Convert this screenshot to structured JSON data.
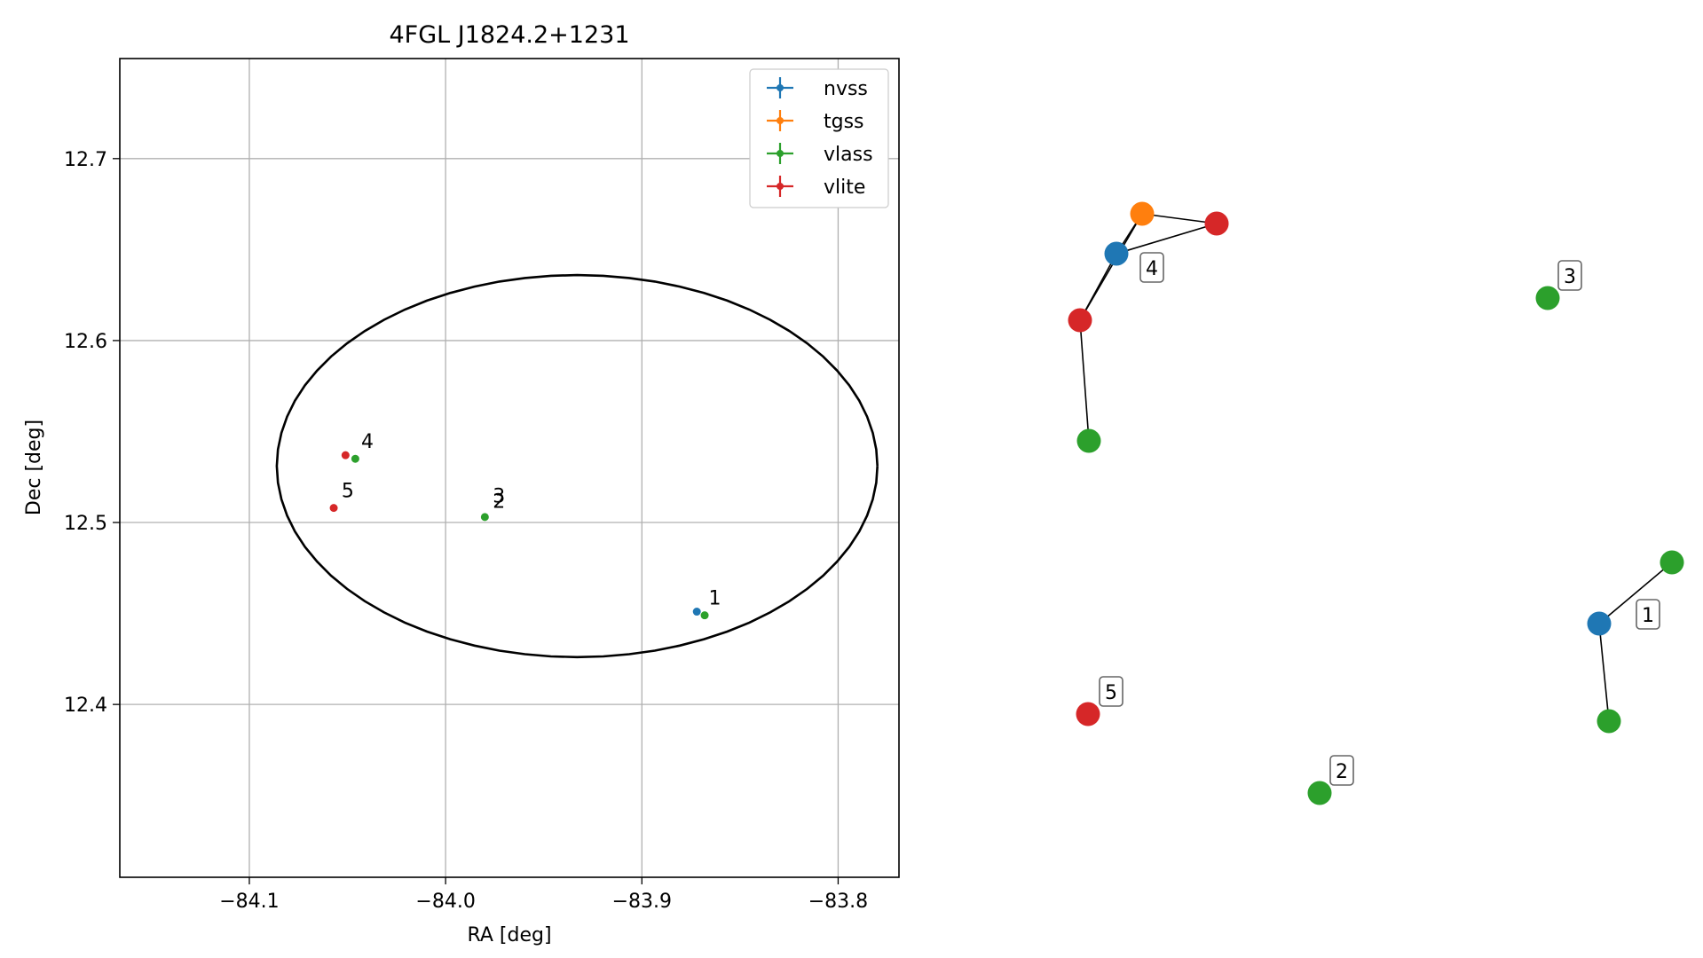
{
  "chart_data": [
    {
      "type": "scatter",
      "title": "4FGL J1824.2+1231",
      "xlabel": "RA [deg]",
      "ylabel": "Dec [deg]",
      "xlim": [
        -84.166,
        -83.769
      ],
      "ylim": [
        12.305,
        12.755
      ],
      "xticks": [
        -84.1,
        -84.0,
        -83.9,
        -83.8
      ],
      "xtick_labels": [
        "−84.1",
        "−84.0",
        "−83.9",
        "−83.8"
      ],
      "yticks": [
        12.4,
        12.5,
        12.6,
        12.7
      ],
      "ytick_labels": [
        "12.4",
        "12.5",
        "12.6",
        "12.7"
      ],
      "grid": true,
      "legend_position": "top-right",
      "ellipse": {
        "center_ra": -83.933,
        "center_dec": 12.531,
        "semi_ra": 0.153,
        "semi_dec": 0.105
      },
      "series": [
        {
          "name": "nvss",
          "color": "#1f77b4",
          "points": [
            {
              "ra": -83.872,
              "dec": 12.451
            }
          ]
        },
        {
          "name": "tgss",
          "color": "#ff7f0e",
          "points": []
        },
        {
          "name": "vlass",
          "color": "#2ca02c",
          "points": [
            {
              "ra": -83.868,
              "dec": 12.449
            },
            {
              "ra": -83.98,
              "dec": 12.503
            },
            {
              "ra": -84.046,
              "dec": 12.535
            }
          ]
        },
        {
          "name": "vlite",
          "color": "#d62728",
          "points": [
            {
              "ra": -84.057,
              "dec": 12.508
            },
            {
              "ra": -84.051,
              "dec": 12.537
            }
          ]
        }
      ],
      "annotations": [
        {
          "text": "1",
          "ra": -83.866,
          "dec": 12.455
        },
        {
          "text": "2",
          "ra": -83.976,
          "dec": 12.508
        },
        {
          "text": "3",
          "ra": -83.976,
          "dec": 12.511
        },
        {
          "text": "4",
          "ra": -84.043,
          "dec": 12.541
        },
        {
          "text": "5",
          "ra": -84.053,
          "dec": 12.514
        }
      ]
    },
    {
      "type": "network",
      "nodes": [
        {
          "id": "n_tgss4",
          "survey": "tgss",
          "color": "#ff7f0e"
        },
        {
          "id": "n_vlite4a",
          "survey": "vlite",
          "color": "#d62728"
        },
        {
          "id": "n_nvss4",
          "survey": "nvss",
          "color": "#1f77b4",
          "label": "4"
        },
        {
          "id": "n_vlite4b",
          "survey": "vlite",
          "color": "#d62728"
        },
        {
          "id": "n_vlass4",
          "survey": "vlass",
          "color": "#2ca02c"
        },
        {
          "id": "n_vlass3",
          "survey": "vlass",
          "color": "#2ca02c",
          "label": "3"
        },
        {
          "id": "n_vlass1a",
          "survey": "vlass",
          "color": "#2ca02c"
        },
        {
          "id": "n_nvss1",
          "survey": "nvss",
          "color": "#1f77b4",
          "label": "1"
        },
        {
          "id": "n_vlass1b",
          "survey": "vlass",
          "color": "#2ca02c"
        },
        {
          "id": "n_vlite5",
          "survey": "vlite",
          "color": "#d62728",
          "label": "5"
        },
        {
          "id": "n_vlass2",
          "survey": "vlass",
          "color": "#2ca02c",
          "label": "2"
        }
      ],
      "edges": [
        [
          "n_nvss4",
          "n_tgss4"
        ],
        [
          "n_nvss4",
          "n_vlite4a"
        ],
        [
          "n_tgss4",
          "n_vlite4a"
        ],
        [
          "n_nvss4",
          "n_vlite4b"
        ],
        [
          "n_tgss4",
          "n_vlite4b"
        ],
        [
          "n_vlite4b",
          "n_vlass4"
        ],
        [
          "n_nvss1",
          "n_vlass1a"
        ],
        [
          "n_nvss1",
          "n_vlass1b"
        ]
      ]
    }
  ]
}
